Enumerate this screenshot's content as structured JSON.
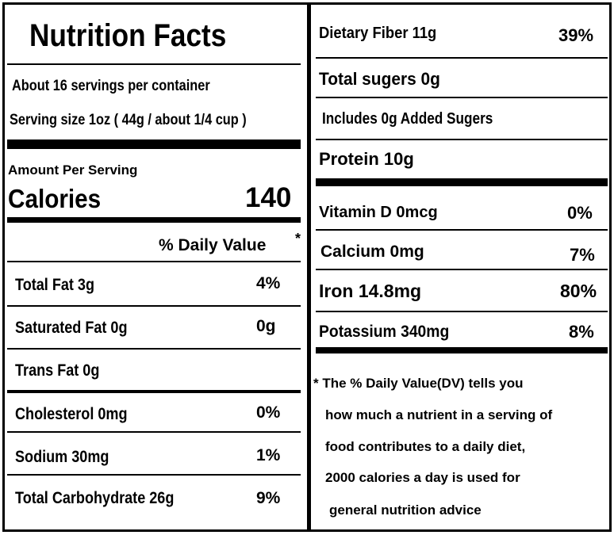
{
  "title": "Nutrition Facts",
  "servings_per_container": "About 16 servings per container",
  "serving_size": "Serving size 1oz ( 44g / about 1/4 cup )",
  "amount_per_serving": "Amount Per Serving",
  "calories": {
    "label": "Calories",
    "value": "140"
  },
  "daily_value_header": "% Daily Value",
  "daily_value_star": "*",
  "left_nutrients": [
    {
      "label": "Total Fat  3g",
      "dv": "4%"
    },
    {
      "label": "Saturated Fat 0g",
      "dv": "0g"
    },
    {
      "label": "Trans Fat 0g",
      "dv": ""
    },
    {
      "label": "Cholesterol  0mg",
      "dv": "0%"
    },
    {
      "label": "Sodium  30mg",
      "dv": "1%"
    },
    {
      "label": "Total Carbohydrate  26g",
      "dv": "9%"
    }
  ],
  "right_nutrients": {
    "fiber": {
      "label": "Dietary Fiber  11g",
      "dv": "39%"
    },
    "total_sugars": {
      "label": "Total sugers 0g"
    },
    "added_sugars": {
      "label": "Includes 0g Added Sugers"
    },
    "protein": {
      "label": "Protein 10g"
    },
    "vitamin_d": {
      "label": "Vitamin D 0mcg",
      "dv": "0%"
    },
    "calcium": {
      "label": "Calcium   0mg",
      "dv": "7%"
    },
    "iron": {
      "label": "Iron  14.8mg",
      "dv": "80%"
    },
    "potassium": {
      "label": "Potassium  340mg",
      "dv": "8%"
    }
  },
  "footnote": [
    "* The % Daily Value(DV)  tells you",
    "how much a nutrient in a serving of",
    "food contributes to a daily diet,",
    "2000 calories a day is used for",
    "general nutrition advice"
  ]
}
